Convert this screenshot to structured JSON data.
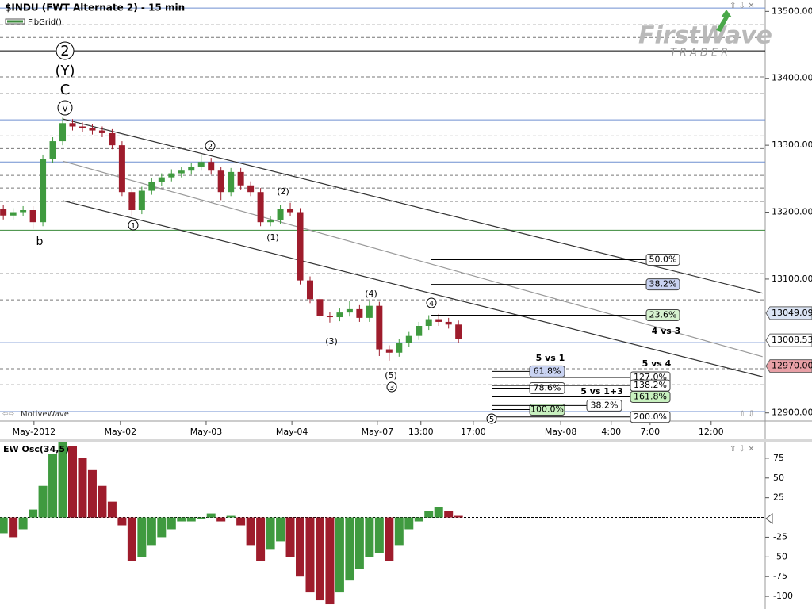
{
  "header": {
    "title": "$INDU (FWT Alternate 2) - 15 min",
    "study": "FibGrid()",
    "watermark": "MotiveWave",
    "logo": "FirstWave",
    "logo_sub": "TRADER"
  },
  "chart_data": [
    {
      "type": "candlestick",
      "x": [
        1,
        4,
        7,
        10,
        13,
        16,
        19,
        22,
        25,
        28,
        31,
        34,
        37,
        40,
        43,
        46,
        49,
        52,
        55,
        58,
        61,
        64,
        67,
        70,
        73,
        76,
        79,
        82,
        85,
        88,
        91,
        94,
        97,
        100,
        103,
        106,
        109,
        112,
        115,
        118,
        121,
        124,
        127,
        130,
        133,
        136,
        139
      ],
      "open": [
        13205,
        13195,
        13200,
        13203,
        13185,
        13280,
        13306,
        13333,
        13328,
        13326,
        13322,
        13318,
        13300,
        13230,
        13203,
        13232,
        13245,
        13252,
        13258,
        13262,
        13268,
        13275,
        13262,
        13230,
        13260,
        13240,
        13230,
        13185,
        13188,
        13205,
        13200,
        13098,
        13070,
        13045,
        13043,
        13050,
        13055,
        13042,
        13060,
        12995,
        12990,
        13005,
        13015,
        13030,
        13040,
        13036,
        13032
      ],
      "high": [
        13211,
        13206,
        13209,
        13209,
        13286,
        13312,
        13341,
        13339,
        13334,
        13332,
        13328,
        13324,
        13306,
        13236,
        13238,
        13251,
        13258,
        13264,
        13268,
        13274,
        13286,
        13281,
        13268,
        13266,
        13266,
        13246,
        13236,
        13194,
        13211,
        13214,
        13206,
        13104,
        13076,
        13051,
        13056,
        13067,
        13061,
        13068,
        13066,
        13001,
        13011,
        13021,
        13036,
        13046,
        13048,
        13042,
        13038
      ],
      "low": [
        13189,
        13189,
        13194,
        13175,
        13179,
        13274,
        13300,
        13322,
        13320,
        13316,
        13312,
        13294,
        13224,
        13195,
        13197,
        13226,
        13239,
        13246,
        13252,
        13256,
        13262,
        13256,
        13218,
        13224,
        13234,
        13224,
        13179,
        13179,
        13182,
        13194,
        13092,
        13064,
        13039,
        13035,
        13037,
        13044,
        13036,
        13036,
        12985,
        12978,
        12984,
        12999,
        13009,
        13024,
        13030,
        13026,
        13004
      ],
      "close": [
        13195,
        13200,
        13203,
        13185,
        13280,
        13306,
        13333,
        13328,
        13326,
        13322,
        13318,
        13300,
        13230,
        13203,
        13232,
        13245,
        13252,
        13258,
        13262,
        13268,
        13275,
        13262,
        13230,
        13260,
        13240,
        13230,
        13185,
        13188,
        13205,
        13200,
        13098,
        13070,
        13045,
        13043,
        13050,
        13055,
        13042,
        13060,
        12995,
        12990,
        13005,
        13015,
        13030,
        13040,
        13036,
        13032,
        13010
      ],
      "up_color": "#3f9a3f",
      "down_color": "#9e1c2c",
      "xlim": [
        0,
        232
      ],
      "xticks": [
        {
          "value": 10.3,
          "label": "May-2012"
        },
        {
          "value": 36.5,
          "label": "May-02"
        },
        {
          "value": 62.5,
          "label": "May-03"
        },
        {
          "value": 88.5,
          "label": "May-04"
        },
        {
          "value": 114.4,
          "label": "May-07"
        },
        {
          "value": 127.6,
          "label": "13:00"
        },
        {
          "value": 143.5,
          "label": "17:00"
        },
        {
          "value": 170,
          "label": "May-08"
        },
        {
          "value": 185.3,
          "label": "4:00"
        },
        {
          "value": 197.1,
          "label": "7:00"
        },
        {
          "value": 215.6,
          "label": "12:00"
        }
      ],
      "ylim": [
        12889,
        13517
      ],
      "yticks": [
        {
          "value": 13500,
          "label": "13500.00"
        },
        {
          "value": 13400,
          "label": "13400.00"
        },
        {
          "value": 13300,
          "label": "13300.00"
        },
        {
          "value": 13200,
          "label": "13200.00"
        },
        {
          "value": 13100,
          "label": "13100.00"
        },
        {
          "value": 12900,
          "label": "12900.00"
        }
      ],
      "levels": [
        {
          "price": 13505,
          "color": "#6f8fd0",
          "dashed": false
        },
        {
          "price": 13480,
          "color": "#777777",
          "dashed": true
        },
        {
          "price": 13461,
          "color": "#777777",
          "dashed": true
        },
        {
          "price": 13441,
          "color": "#000000",
          "dashed": false
        },
        {
          "price": 13402,
          "color": "#777777",
          "dashed": true
        },
        {
          "price": 13377,
          "color": "#777777",
          "dashed": true
        },
        {
          "price": 13338,
          "color": "#6f8fd0",
          "dashed": false
        },
        {
          "price": 13314,
          "color": "#777777",
          "dashed": true
        },
        {
          "price": 13295,
          "color": "#777777",
          "dashed": true
        },
        {
          "price": 13275,
          "color": "#6f8fd0",
          "dashed": false
        },
        {
          "price": 13255,
          "color": "#777777",
          "dashed": true
        },
        {
          "price": 13236,
          "color": "#777777",
          "dashed": true
        },
        {
          "price": 13216,
          "color": "#777777",
          "dashed": true
        },
        {
          "price": 13173,
          "color": "#3a8a3a",
          "dashed": false
        },
        {
          "price": 13108,
          "color": "#777777",
          "dashed": true
        },
        {
          "price": 13069,
          "color": "#777777",
          "dashed": true
        },
        {
          "price": 13005,
          "color": "#6f8fd0",
          "dashed": false
        },
        {
          "price": 12966,
          "color": "#777777",
          "dashed": true
        },
        {
          "price": 12942,
          "color": "#777777",
          "dashed": true
        },
        {
          "price": 12902,
          "color": "#6f8fd0",
          "dashed": false
        }
      ],
      "trend_lines": [
        {
          "x": [
            19.2,
            231.2
          ],
          "y": [
            13339,
            13079
          ],
          "color": "#333333"
        },
        {
          "x": [
            19.2,
            231.2
          ],
          "y": [
            13276,
            12984
          ],
          "color": "#999999"
        },
        {
          "x": [
            19.2,
            231.2
          ],
          "y": [
            13217,
            12954
          ],
          "color": "#333333"
        }
      ],
      "fib_groups": [
        {
          "heading": "4 vs 3",
          "levels": [
            {
              "label": "50.0%",
              "price": 13129,
              "box": "#ffffff"
            },
            {
              "label": "38.2%",
              "price": 13092,
              "box": "#c9d3f2"
            },
            {
              "label": "23.6%",
              "price": 13046,
              "box": "#d6f2cf"
            }
          ]
        },
        {
          "heading": "5 vs 1",
          "levels": [
            {
              "label": "61.8%",
              "price": 12962,
              "box": "#c9d3f2"
            },
            {
              "label": "78.6%",
              "price": 12937,
              "box": "#ffffff"
            },
            {
              "label": "100.0%",
              "price": 12905,
              "box": "#c8f0bf"
            }
          ]
        },
        {
          "heading": "5 vs 4",
          "levels": [
            {
              "label": "127.0%",
              "price": 12953,
              "box": "#ffffff"
            },
            {
              "label": "138.2%",
              "price": 12941,
              "box": "#ffffff"
            },
            {
              "label": "161.8%",
              "price": 12924,
              "box": "#c8f0bf"
            },
            {
              "label": "200.0%",
              "price": 12894,
              "box": "#ffffff"
            }
          ]
        },
        {
          "heading": "5 vs 1+3",
          "levels": [
            {
              "label": "38.2%",
              "price": 12911,
              "box": "#ffffff"
            }
          ]
        }
      ],
      "price_tags": [
        {
          "value": 13049.09,
          "label": "13049.09",
          "color": "#dbe4f4"
        },
        {
          "value": 13008.53,
          "label": "13008.53",
          "color": "#ffffff"
        },
        {
          "value": 12970,
          "label": "12970.00",
          "color": "#e8a0a6"
        }
      ],
      "wave_labels": [
        {
          "text": "2",
          "circled": true
        },
        {
          "text": "(Y)",
          "circled": false
        },
        {
          "text": "C",
          "circled": false
        },
        {
          "text": "v",
          "circled": true
        },
        {
          "text": "b",
          "circled": false
        },
        {
          "text": "1",
          "circled": true
        },
        {
          "text": "2",
          "circled": true
        },
        {
          "text": "(2)",
          "circled": false
        },
        {
          "text": "(1)",
          "circled": false
        },
        {
          "text": "(3)",
          "circled": false
        },
        {
          "text": "(4)",
          "circled": false
        },
        {
          "text": "4",
          "circled": true
        },
        {
          "text": "(5)",
          "circled": false
        },
        {
          "text": "3",
          "circled": true
        },
        {
          "text": "5",
          "circled": true
        }
      ]
    },
    {
      "type": "bar",
      "title": "EW Osc(34,5)",
      "x": [
        1,
        4,
        7,
        10,
        13,
        16,
        19,
        22,
        25,
        28,
        31,
        34,
        37,
        40,
        43,
        46,
        49,
        52,
        55,
        58,
        61,
        64,
        67,
        70,
        73,
        76,
        79,
        82,
        85,
        88,
        91,
        94,
        97,
        100,
        103,
        106,
        109,
        112,
        115,
        118,
        121,
        124,
        127,
        130,
        133,
        136,
        139
      ],
      "values": [
        -20,
        -25,
        -15,
        10,
        40,
        80,
        95,
        90,
        75,
        60,
        40,
        20,
        -10,
        -55,
        -50,
        -35,
        -25,
        -15,
        -5,
        -5,
        -2,
        5,
        -5,
        2,
        -10,
        -35,
        -55,
        -40,
        -30,
        -50,
        -75,
        -95,
        -105,
        -110,
        -95,
        -80,
        -65,
        -50,
        -45,
        -55,
        -35,
        -15,
        -5,
        8,
        13,
        8,
        2
      ],
      "up_color": "#3f9a3f",
      "down_color": "#9e1c2c",
      "xlim": [
        0,
        232
      ],
      "ylim": [
        -116,
        96
      ],
      "yticks": [
        75,
        50,
        25,
        -25,
        -50,
        -75,
        -100
      ]
    }
  ]
}
